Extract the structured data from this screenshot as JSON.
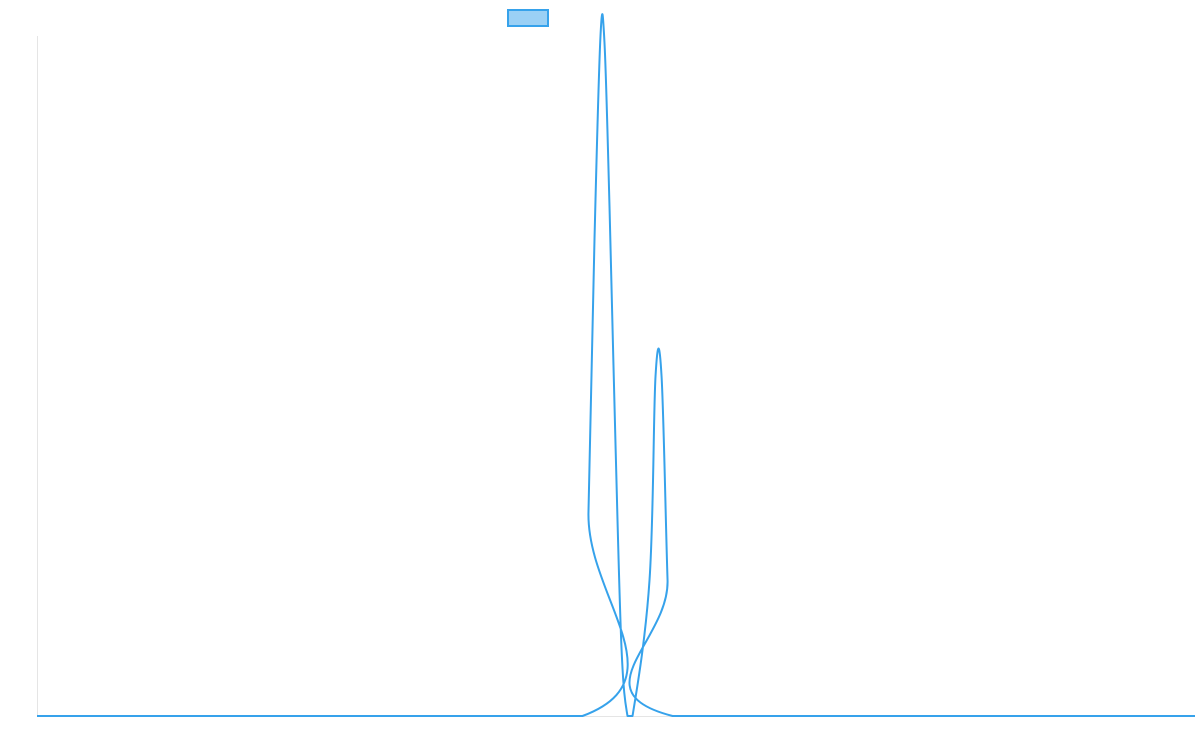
{
  "chart_data": {
    "type": "line",
    "title": "",
    "xlabel": "",
    "ylabel": "",
    "grid": false,
    "legend": {
      "placement": "top-center",
      "entries": [
        {
          "name": "",
          "color": "#36a2eb",
          "fill": "#9ad0f5"
        }
      ]
    },
    "xlim": [
      0,
      1157
    ],
    "ylim": [
      0,
      1
    ],
    "series": [
      {
        "name": "",
        "color": "#36a2eb",
        "x": [
          0,
          545,
          551,
          557,
          563,
          567,
          572,
          578,
          584,
          590,
          595,
          612,
          618,
          624,
          630,
          635,
          1157
        ],
        "y": [
          0,
          0,
          0.3,
          0.7,
          1.0,
          0.99,
          0.75,
          0.4,
          0.1,
          0,
          0,
          0.2,
          0.5,
          0.5,
          0.2,
          0,
          0
        ]
      }
    ]
  }
}
